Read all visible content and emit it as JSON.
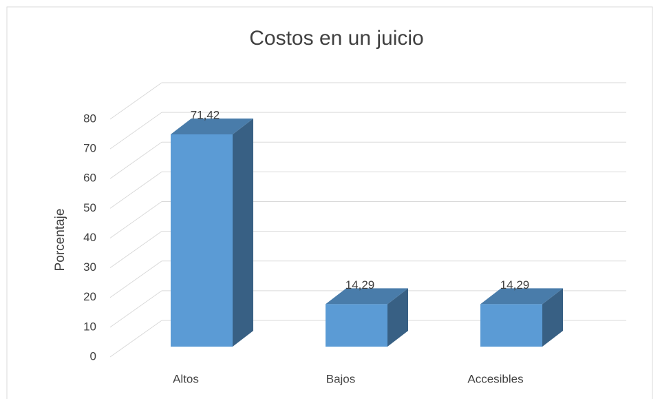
{
  "chart_data": {
    "type": "bar3d",
    "title": "Costos en un juicio",
    "y_label": "Porcentaje",
    "categories": [
      "Altos",
      "Bajos",
      "Accesibles"
    ],
    "values": [
      71.42,
      14.29,
      14.29
    ],
    "value_labels": [
      "71,42",
      "14,29",
      "14,29"
    ],
    "color": "#5b9bd5",
    "ylim": [
      0,
      80
    ],
    "yticks": [
      0,
      10,
      20,
      30,
      40,
      50,
      60,
      70,
      80
    ],
    "grid": true
  }
}
